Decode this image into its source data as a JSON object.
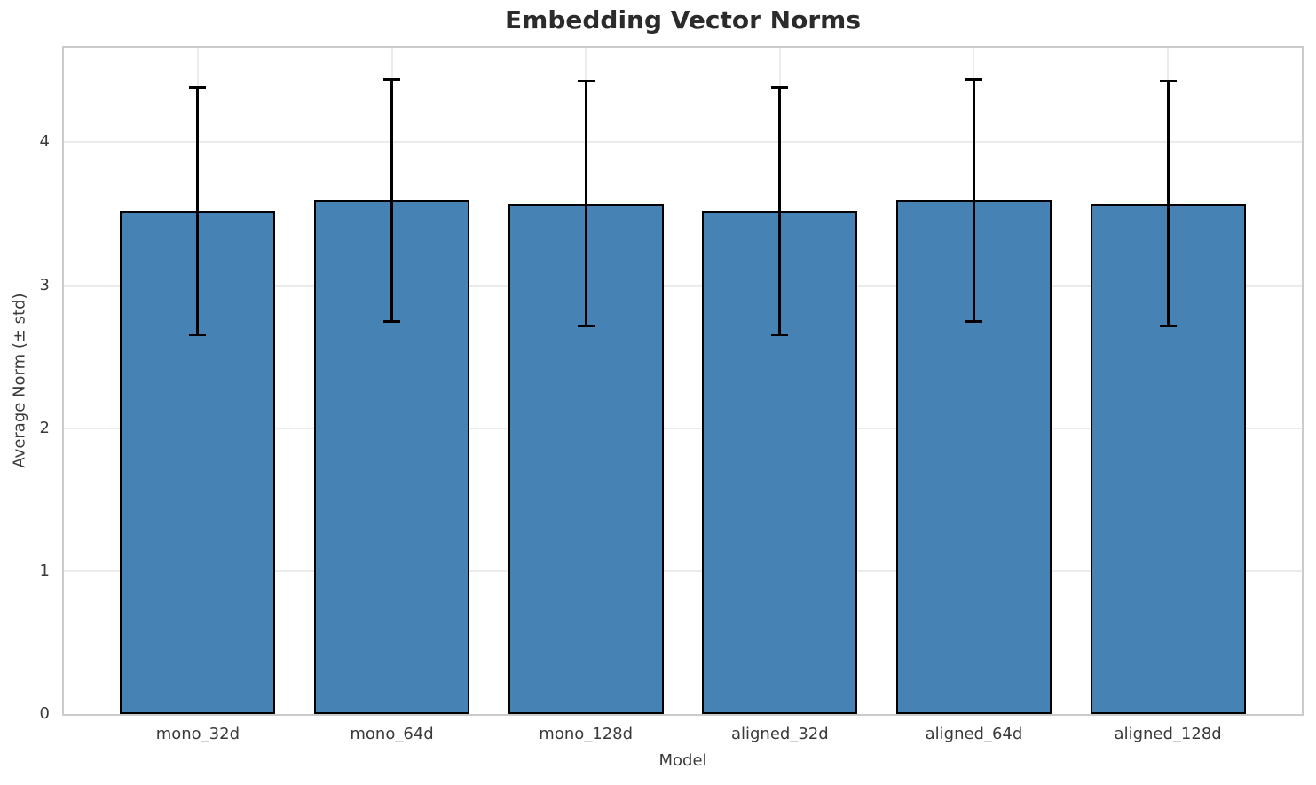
{
  "chart_data": {
    "type": "bar",
    "title": "Embedding Vector Norms",
    "xlabel": "Model",
    "ylabel": "Average Norm (± std)",
    "categories": [
      "mono_32d",
      "mono_64d",
      "mono_128d",
      "aligned_32d",
      "aligned_64d",
      "aligned_128d"
    ],
    "series": [
      {
        "name": "Average Norm (± std)",
        "values": [
          3.52,
          3.59,
          3.57,
          3.52,
          3.59,
          3.57
        ],
        "errors": [
          0.87,
          0.85,
          0.86,
          0.87,
          0.85,
          0.86
        ]
      }
    ],
    "yticks": [
      0,
      1,
      2,
      3,
      4
    ],
    "ylim": [
      0,
      4.66
    ],
    "grid": true,
    "legend_position": "none",
    "colors": {
      "bar_fill": "#4682b4",
      "bar_edge": "#000000",
      "error_bar": "#000000",
      "grid_line": "#ebebeb",
      "spine": "#cbcbcb",
      "title_text": "#2b2b2b",
      "tick_text": "#3a3a3a"
    }
  }
}
